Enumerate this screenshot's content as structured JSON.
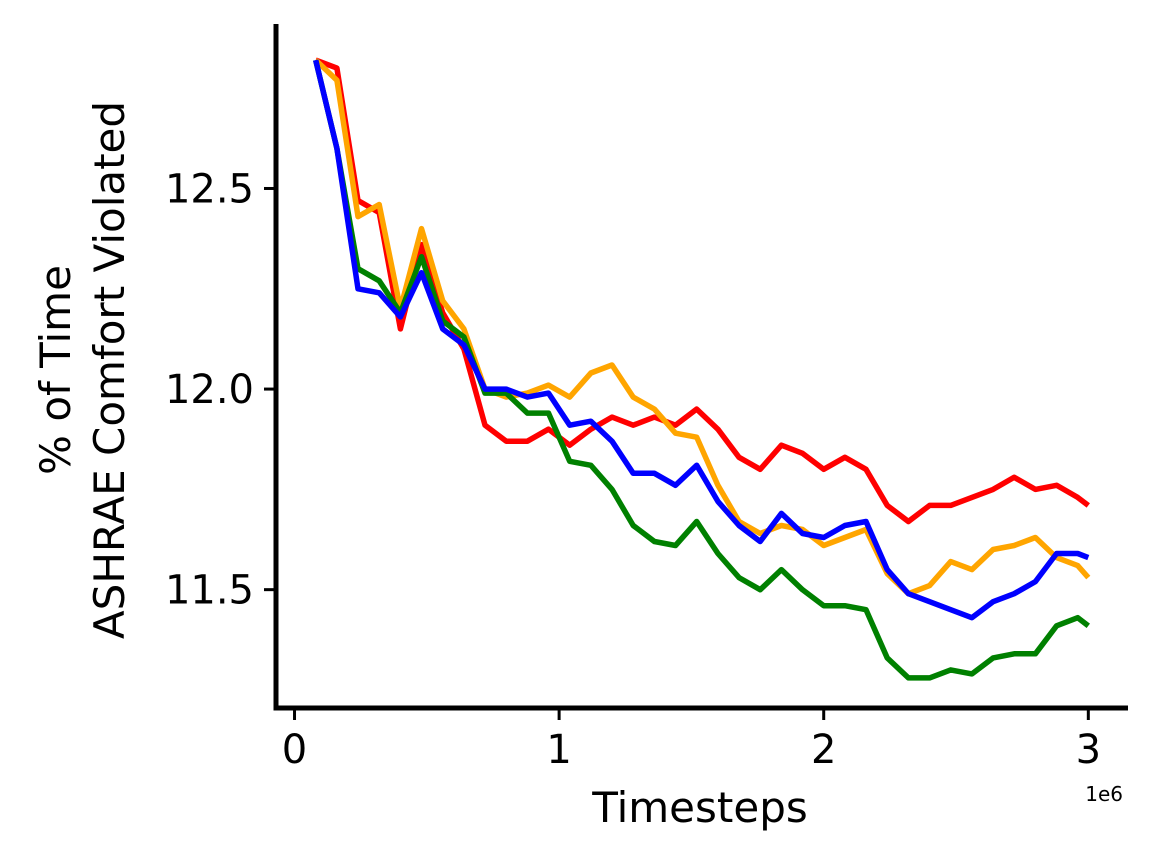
{
  "chart_data": {
    "type": "line",
    "title": "",
    "xlabel": "Timesteps",
    "ylabel_lines": [
      "% of Time",
      "ASHRAE Comfort Violated"
    ],
    "x_offset_label": "1e6",
    "xlim": [
      -0.07,
      3.15
    ],
    "ylim": [
      11.205,
      12.91
    ],
    "x_ticks": [
      0,
      1,
      2,
      3
    ],
    "x_tick_labels": [
      "0",
      "1",
      "2",
      "3"
    ],
    "y_ticks": [
      11.5,
      12.0,
      12.5
    ],
    "y_tick_labels": [
      "11.5",
      "12.0",
      "12.5"
    ],
    "grid": false,
    "legend": "none",
    "x": [
      0.08,
      0.16,
      0.24,
      0.32,
      0.4,
      0.48,
      0.56,
      0.64,
      0.72,
      0.8,
      0.88,
      0.96,
      1.04,
      1.12,
      1.2,
      1.28,
      1.36,
      1.44,
      1.52,
      1.6,
      1.68,
      1.76,
      1.84,
      1.92,
      2.0,
      2.08,
      2.16,
      2.24,
      2.32,
      2.4,
      2.48,
      2.56,
      2.64,
      2.72,
      2.8,
      2.88,
      2.96,
      3.0
    ],
    "series": [
      {
        "color": "#ff0000",
        "values": [
          12.82,
          12.8,
          12.47,
          12.44,
          12.15,
          12.36,
          12.19,
          12.1,
          11.91,
          11.87,
          11.87,
          11.9,
          11.86,
          11.9,
          11.93,
          11.91,
          11.93,
          11.91,
          11.95,
          11.9,
          11.83,
          11.8,
          11.86,
          11.84,
          11.8,
          11.83,
          11.8,
          11.71,
          11.67,
          11.71,
          11.71,
          11.73,
          11.75,
          11.78,
          11.75,
          11.76,
          11.73,
          11.71
        ]
      },
      {
        "color": "#ffa500",
        "values": [
          12.82,
          12.77,
          12.43,
          12.46,
          12.2,
          12.4,
          12.22,
          12.15,
          12.0,
          11.98,
          11.99,
          12.01,
          11.98,
          12.04,
          12.06,
          11.98,
          11.95,
          11.89,
          11.88,
          11.76,
          11.67,
          11.64,
          11.66,
          11.65,
          11.61,
          11.63,
          11.65,
          11.54,
          11.49,
          11.51,
          11.57,
          11.55,
          11.6,
          11.61,
          11.63,
          11.58,
          11.56,
          11.53
        ]
      },
      {
        "color": "#008000",
        "values": [
          12.82,
          12.6,
          12.3,
          12.27,
          12.19,
          12.33,
          12.17,
          12.13,
          11.99,
          11.99,
          11.94,
          11.94,
          11.82,
          11.81,
          11.75,
          11.66,
          11.62,
          11.61,
          11.67,
          11.59,
          11.53,
          11.5,
          11.55,
          11.5,
          11.46,
          11.46,
          11.45,
          11.33,
          11.28,
          11.28,
          11.3,
          11.29,
          11.33,
          11.34,
          11.34,
          11.41,
          11.43,
          11.41
        ]
      },
      {
        "color": "#0000ff",
        "values": [
          12.82,
          12.6,
          12.25,
          12.24,
          12.18,
          12.29,
          12.15,
          12.11,
          12.0,
          12.0,
          11.98,
          11.99,
          11.91,
          11.92,
          11.87,
          11.79,
          11.79,
          11.76,
          11.81,
          11.72,
          11.66,
          11.62,
          11.69,
          11.64,
          11.63,
          11.66,
          11.67,
          11.55,
          11.49,
          11.47,
          11.45,
          11.43,
          11.47,
          11.49,
          11.52,
          11.59,
          11.59,
          11.58
        ]
      }
    ]
  }
}
